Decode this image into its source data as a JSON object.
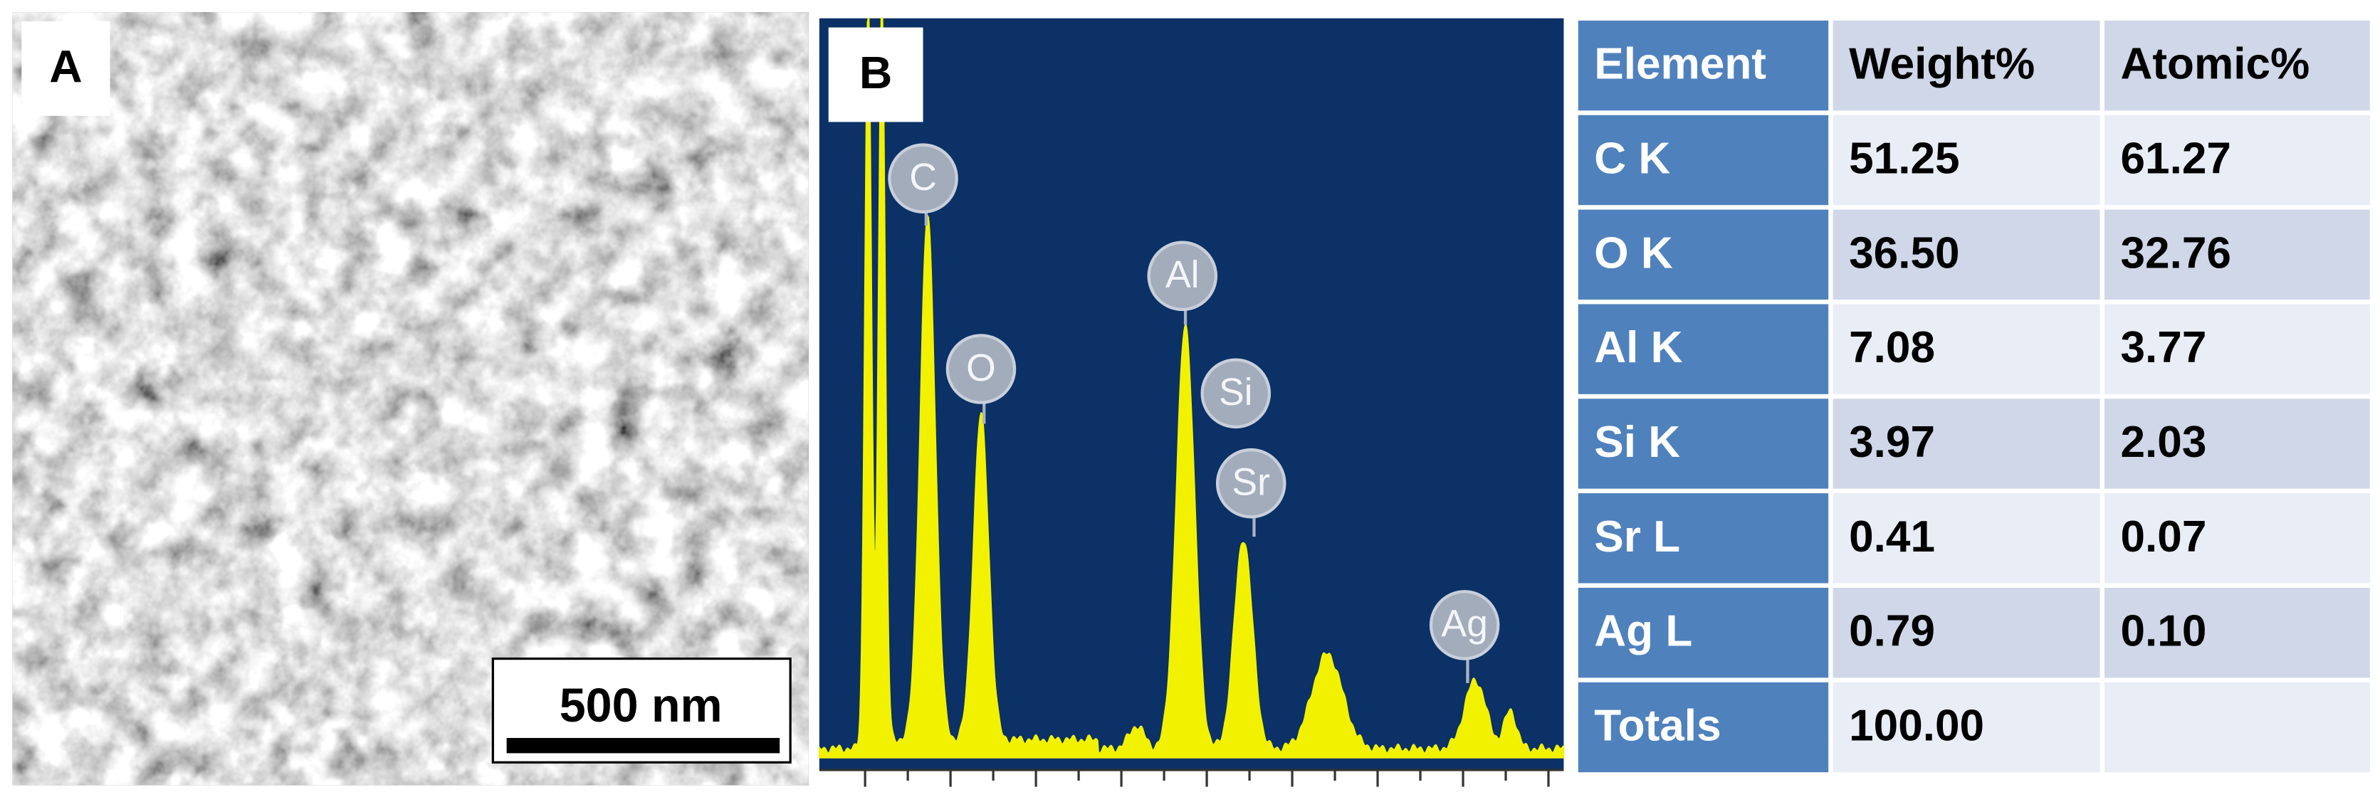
{
  "panel_a": {
    "label": "A",
    "scale_bar": "500 nm"
  },
  "panel_b": {
    "label": "B",
    "peaks": [
      "C",
      "O",
      "Al",
      "Si",
      "Sr",
      "Ag"
    ]
  },
  "table": {
    "header": [
      "Element",
      "Weight%",
      "Atomic%"
    ],
    "rows": [
      [
        "C K",
        "51.25",
        "61.27"
      ],
      [
        "O K",
        "36.50",
        "32.76"
      ],
      [
        "Al K",
        "7.08",
        "3.77"
      ],
      [
        "Si K",
        "3.97",
        "2.03"
      ],
      [
        "Sr L",
        "0.41",
        "0.07"
      ],
      [
        "Ag L",
        "0.79",
        "0.10"
      ],
      [
        "Totals",
        "100.00"
      ]
    ]
  }
}
